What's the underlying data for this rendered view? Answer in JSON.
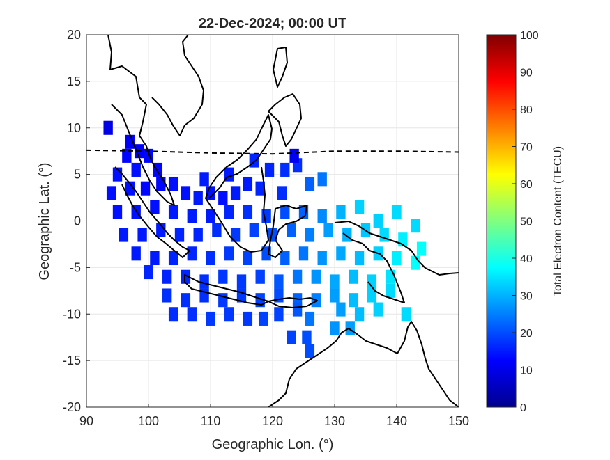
{
  "chart_data": {
    "type": "heatmap",
    "title": "22-Dec-2024; 00:00 UT",
    "xlabel": "Geographic Lon. (°)",
    "ylabel": "Geographic Lat. (°)",
    "xlim": [
      90,
      150
    ],
    "ylim": [
      -20,
      20
    ],
    "xticks": [
      "90",
      "100",
      "110",
      "120",
      "130",
      "140",
      "150"
    ],
    "yticks": [
      "20",
      "15",
      "10",
      "5",
      "0",
      "-5",
      "-10",
      "-15",
      "-20"
    ],
    "grid": true,
    "colorbar": {
      "label": "Total Electron Content (TECU)",
      "range": [
        0,
        100
      ],
      "ticks": [
        "0",
        "10",
        "20",
        "30",
        "40",
        "50",
        "60",
        "70",
        "80",
        "90",
        "100"
      ],
      "colormap": "jet"
    },
    "cell_size_deg": 1.5,
    "magnetic_equator": [
      [
        90,
        7.6
      ],
      [
        100,
        7.5
      ],
      [
        110,
        7.3
      ],
      [
        120,
        7.2
      ],
      [
        130,
        7.5
      ],
      [
        140,
        7.5
      ],
      [
        150,
        7.4
      ]
    ],
    "tec_cells": [
      [
        93.5,
        10,
        10
      ],
      [
        97,
        8.5,
        12
      ],
      [
        98.5,
        7.5,
        12
      ],
      [
        96.5,
        7,
        13
      ],
      [
        100,
        7,
        13
      ],
      [
        101.5,
        5.5,
        13
      ],
      [
        98,
        5.5,
        14
      ],
      [
        95,
        5,
        14
      ],
      [
        94,
        3,
        14
      ],
      [
        97,
        3.5,
        14
      ],
      [
        99.5,
        3.5,
        13
      ],
      [
        102,
        4,
        13
      ],
      [
        104,
        4,
        14
      ],
      [
        106,
        3,
        14
      ],
      [
        108,
        2.5,
        15
      ],
      [
        110,
        3,
        14
      ],
      [
        112,
        2.5,
        14
      ],
      [
        114,
        3,
        15
      ],
      [
        116,
        4,
        15
      ],
      [
        118,
        3.5,
        16
      ],
      [
        109,
        4.5,
        15
      ],
      [
        113,
        5,
        15
      ],
      [
        117,
        6.5,
        16
      ],
      [
        119.5,
        5.5,
        16
      ],
      [
        122,
        5.5,
        17
      ],
      [
        124,
        6,
        17
      ],
      [
        126,
        4,
        22
      ],
      [
        128,
        4.5,
        24
      ],
      [
        123.5,
        7,
        11
      ],
      [
        121.5,
        3,
        17
      ],
      [
        95,
        1,
        14
      ],
      [
        98,
        1,
        14
      ],
      [
        101,
        1.5,
        14
      ],
      [
        104,
        1,
        15
      ],
      [
        107,
        0.5,
        15
      ],
      [
        110,
        0.5,
        15
      ],
      [
        113,
        1,
        16
      ],
      [
        116,
        1,
        17
      ],
      [
        119,
        0.5,
        18
      ],
      [
        122,
        1,
        20
      ],
      [
        125,
        1,
        22
      ],
      [
        128,
        0.5,
        26
      ],
      [
        131,
        1,
        30
      ],
      [
        134,
        1.5,
        33
      ],
      [
        137,
        0,
        33
      ],
      [
        140,
        1,
        34
      ],
      [
        143,
        -0.5,
        34
      ],
      [
        96,
        -1.5,
        15
      ],
      [
        99,
        -1.5,
        15
      ],
      [
        102,
        -1,
        15
      ],
      [
        105,
        -1.5,
        16
      ],
      [
        108,
        -1.5,
        16
      ],
      [
        111,
        -1,
        17
      ],
      [
        114,
        -1.5,
        18
      ],
      [
        117,
        -1,
        19
      ],
      [
        120,
        -1.5,
        20
      ],
      [
        123,
        -1,
        22
      ],
      [
        126,
        -1.5,
        25
      ],
      [
        129,
        -1,
        28
      ],
      [
        132,
        -1.5,
        30
      ],
      [
        135,
        -1,
        32
      ],
      [
        138,
        -1.5,
        34
      ],
      [
        141,
        -2,
        36
      ],
      [
        144,
        -3,
        38
      ],
      [
        98,
        -3.5,
        15
      ],
      [
        101,
        -4,
        15
      ],
      [
        104,
        -4,
        16
      ],
      [
        107,
        -3.5,
        16
      ],
      [
        110,
        -4,
        17
      ],
      [
        113,
        -3.5,
        18
      ],
      [
        116,
        -4,
        19
      ],
      [
        119,
        -3.5,
        20
      ],
      [
        122,
        -4,
        22
      ],
      [
        125,
        -3.5,
        24
      ],
      [
        128,
        -4,
        27
      ],
      [
        131,
        -3.5,
        29
      ],
      [
        134,
        -4,
        31
      ],
      [
        137,
        -3.5,
        33
      ],
      [
        140,
        -4,
        36
      ],
      [
        143,
        -4.5,
        38
      ],
      [
        100,
        -5.5,
        16
      ],
      [
        103,
        -6,
        16
      ],
      [
        106,
        -6,
        16
      ],
      [
        109,
        -6.5,
        17
      ],
      [
        112,
        -6,
        18
      ],
      [
        115,
        -6.5,
        18
      ],
      [
        118,
        -6,
        19
      ],
      [
        121,
        -6.5,
        21
      ],
      [
        124,
        -6,
        24
      ],
      [
        127,
        -6,
        27
      ],
      [
        130,
        -6.5,
        29
      ],
      [
        133,
        -6,
        31
      ],
      [
        136,
        -6.5,
        33
      ],
      [
        139,
        -6,
        35
      ],
      [
        103,
        -8,
        17
      ],
      [
        106,
        -8.5,
        17
      ],
      [
        109,
        -8,
        17
      ],
      [
        112,
        -8.5,
        18
      ],
      [
        115,
        -8,
        18
      ],
      [
        118,
        -8.5,
        19
      ],
      [
        121,
        -8,
        20
      ],
      [
        124,
        -8.5,
        22
      ],
      [
        127,
        -8.5,
        25
      ],
      [
        130,
        -8,
        28
      ],
      [
        133,
        -8.5,
        31
      ],
      [
        136,
        -8,
        33
      ],
      [
        139,
        -7.5,
        34
      ],
      [
        104,
        -10,
        17
      ],
      [
        107,
        -10,
        17
      ],
      [
        110,
        -10.5,
        18
      ],
      [
        113,
        -10,
        18
      ],
      [
        116,
        -10.5,
        18
      ],
      [
        118.5,
        -10.5,
        19
      ],
      [
        121,
        -10,
        19
      ],
      [
        124,
        -9.5,
        21
      ],
      [
        126,
        -10.5,
        24
      ],
      [
        131,
        -9.5,
        28
      ],
      [
        134,
        -10,
        31
      ],
      [
        137,
        -9.5,
        33
      ],
      [
        141.5,
        -10,
        34
      ],
      [
        123,
        -12.5,
        19
      ],
      [
        125.5,
        -12.5,
        20
      ],
      [
        130,
        -11.5,
        27
      ],
      [
        132.5,
        -11.5,
        28
      ],
      [
        126,
        -14,
        20
      ]
    ]
  }
}
